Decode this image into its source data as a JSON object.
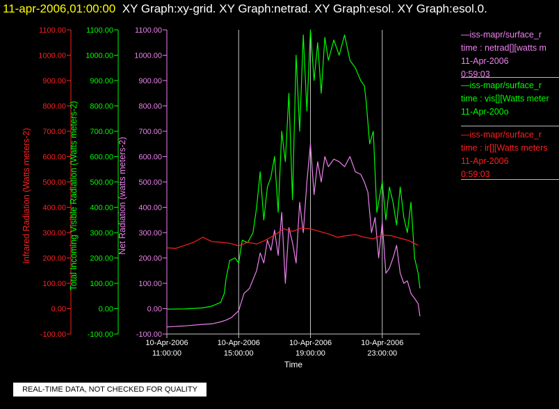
{
  "header": {
    "datetime": "11-apr-2006,01:00:00",
    "graphs": "XY Graph:xy-grid.  XY Graph:netrad.  XY Graph:esol.  XY Graph:esol.0."
  },
  "status": "REAL-TIME DATA, NOT CHECKED FOR QUALITY",
  "legend": [
    {
      "color": "#ee82ee",
      "lines": [
        "—iss-mapr/surface_r",
        "time : netrad[][watts m",
        "11-Apr-2006",
        "0:59:03"
      ]
    },
    {
      "color": "#00ff00",
      "lines": [
        "—iss-mapr/surface_r",
        "time : vis[][Watts meter",
        "11-Apr-200o"
      ]
    },
    {
      "color": "#ff2020",
      "lines": [
        "—iss-mapr/surface_r",
        "time : ir[][Watts meters",
        "11-Apr-2006",
        "0:59:03"
      ]
    }
  ],
  "chart_data": {
    "type": "line",
    "xlabel": "Time",
    "x_ticks": [
      [
        "10-Apr-2006",
        "11:00:00"
      ],
      [
        "10-Apr-2006",
        "15:00:00"
      ],
      [
        "10-Apr-2006",
        "19:00:00"
      ],
      [
        "10-Apr-2006",
        "23:00:00"
      ]
    ],
    "x_tick_hours": [
      11,
      15,
      19,
      23
    ],
    "x_range_hours": [
      11,
      25.1
    ],
    "grid": "vertical lines at each x tick",
    "y_axes": [
      {
        "label": "Infrared Radiation (Watts meters-2)",
        "color": "#ff2020",
        "ticks": [
          "1100.00",
          "1000.00",
          "900.00",
          "800.00",
          "700.00",
          "600.00",
          "500.00",
          "400.00",
          "300.00",
          "200.00",
          "100.00",
          "0.00",
          "-100.00"
        ]
      },
      {
        "label": "Total Incoming Visible Radiation (Watts meters-2)",
        "color": "#00ff00",
        "ticks": [
          "1100.00",
          "1000.00",
          "900.00",
          "800.00",
          "700.00",
          "600.00",
          "500.00",
          "400.00",
          "300.00",
          "200.00",
          "100.00",
          "0.00",
          "-100.00"
        ]
      },
      {
        "label": "Net Radiation (watts meters-2)",
        "color": "#ee82ee",
        "ticks": [
          "1100.00",
          "1000.00",
          "900.00",
          "800.00",
          "700.00",
          "600.00",
          "500.00",
          "400.00",
          "300.00",
          "200.00",
          "100.00",
          "0.00",
          "-100.00"
        ]
      }
    ],
    "ylim": [
      -100,
      1100
    ],
    "series": [
      {
        "color": "#00ff00",
        "x": [
          11,
          12,
          13,
          13.5,
          14,
          14.2,
          14.3,
          14.5,
          14.8,
          15,
          15.2,
          15.5,
          15.8,
          16,
          16.2,
          16.4,
          16.6,
          16.8,
          17,
          17.2,
          17.4,
          17.6,
          17.8,
          18,
          18.2,
          18.4,
          18.6,
          18.8,
          19,
          19.2,
          19.4,
          19.6,
          19.8,
          20,
          20.3,
          20.6,
          20.9,
          21.2,
          21.5,
          21.8,
          22,
          22.1,
          22.3,
          22.5,
          22.7,
          23,
          23.2,
          23.4,
          23.6,
          23.8,
          24,
          24.2,
          24.4,
          24.6,
          24.8,
          25,
          25.1
        ],
        "y": [
          -2,
          -1,
          3,
          10,
          25,
          60,
          120,
          190,
          200,
          180,
          270,
          260,
          300,
          400,
          540,
          350,
          480,
          520,
          600,
          380,
          700,
          580,
          850,
          430,
          1000,
          700,
          1080,
          780,
          1100,
          900,
          1050,
          850,
          1070,
          980,
          1060,
          1000,
          1080,
          980,
          950,
          900,
          880,
          820,
          650,
          700,
          380,
          500,
          350,
          480,
          420,
          330,
          480,
          360,
          300,
          420,
          200,
          140,
          80
        ]
      },
      {
        "color": "#ee82ee",
        "x": [
          11,
          12,
          13,
          13.5,
          14,
          14.3,
          14.6,
          15,
          15.3,
          15.6,
          16,
          16.2,
          16.4,
          16.6,
          16.8,
          17,
          17.2,
          17.4,
          17.6,
          17.8,
          18,
          18.2,
          18.4,
          18.6,
          18.8,
          19,
          19.2,
          19.4,
          19.6,
          19.8,
          20,
          20.3,
          20.6,
          20.9,
          21.2,
          21.5,
          21.8,
          22,
          22.2,
          22.4,
          22.6,
          22.8,
          23,
          23.2,
          23.4,
          23.6,
          23.8,
          24,
          24.2,
          24.4,
          24.6,
          24.8,
          25,
          25.1
        ],
        "y": [
          -72,
          -68,
          -62,
          -60,
          -52,
          -45,
          -35,
          -8,
          60,
          80,
          150,
          220,
          180,
          270,
          230,
          310,
          210,
          380,
          100,
          320,
          260,
          180,
          420,
          300,
          500,
          650,
          450,
          580,
          500,
          600,
          560,
          590,
          580,
          560,
          600,
          540,
          530,
          500,
          460,
          300,
          360,
          200,
          340,
          140,
          160,
          200,
          250,
          140,
          100,
          110,
          60,
          40,
          20,
          -30
        ]
      },
      {
        "color": "#ff2020",
        "x": [
          11,
          11.5,
          12,
          12.5,
          13,
          13.5,
          14,
          14.5,
          15,
          15.5,
          16,
          16.5,
          17,
          17.5,
          18,
          18.5,
          19,
          19.5,
          20,
          20.5,
          21,
          21.5,
          22,
          22.5,
          23,
          23.5,
          24,
          24.5,
          25
        ],
        "y": [
          240,
          238,
          250,
          262,
          282,
          265,
          262,
          258,
          248,
          262,
          255,
          270,
          290,
          315,
          305,
          318,
          315,
          305,
          295,
          282,
          288,
          292,
          282,
          276,
          290,
          288,
          278,
          268,
          250
        ]
      }
    ]
  }
}
